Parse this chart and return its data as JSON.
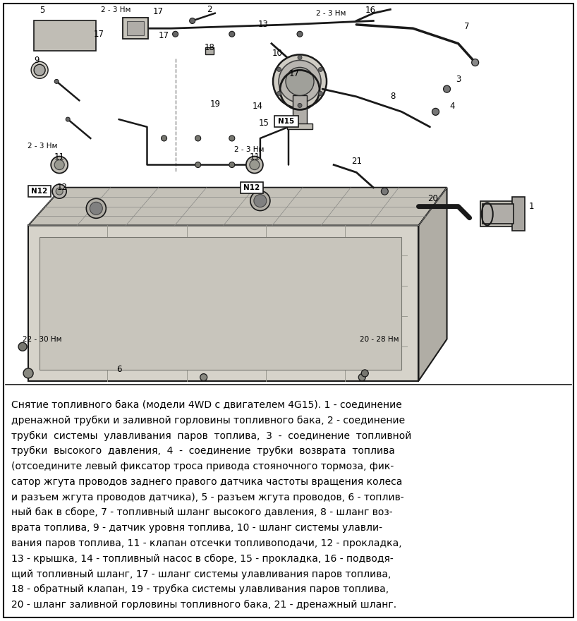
{
  "fig_width": 8.18,
  "fig_height": 8.8,
  "dpi": 100,
  "bg_color": "#ffffff",
  "diag_bg": "#f8f7f4",
  "border_color": "#1a1a1a",
  "text_color": "#000000",
  "line_color": "#1a1a1a",
  "caption_fontsize": 10.0,
  "label_fontsize": 8.5,
  "caption_lines": [
    "Снятие топливного бака (модели 4WD с двигателем 4G15). 1 - соединение",
    "дренажной трубки и заливной горловины топливного бака, 2 - соединение",
    "трубки  системы  улавливания  паров  топлива,  3  -  соединение  топливной",
    "трубки  высокого  давления,  4  -  соединение  трубки  возврата  топлива",
    "(отсоедините левый фиксатор троса привода стояночного тормоза, фик-",
    "сатор жгута проводов заднего правого датчика частоты вращения колеса",
    "и разъем жгута проводов датчика), 5 - разъем жгута проводов, 6 - топлив-",
    "ный бак в сборе, 7 - топливный шланг высокого давления, 8 - шланг воз-",
    "врата топлива, 9 - датчик уровня топлива, 10 - шланг системы улавли-",
    "вания паров топлива, 11 - клапан отсечки топливоподачи, 12 - прокладка,",
    "13 - крышка, 14 - топливный насос в сборе, 15 - прокладка, 16 - подводя-",
    "щий топливный шланг, 17 - шланг системы улавливания паров топлива,",
    "18 - обратный клапан, 19 - трубка системы улавливания паров топлива,",
    "20 - шланг заливной горловины топливного бака, 21 - дренажный шланг."
  ]
}
